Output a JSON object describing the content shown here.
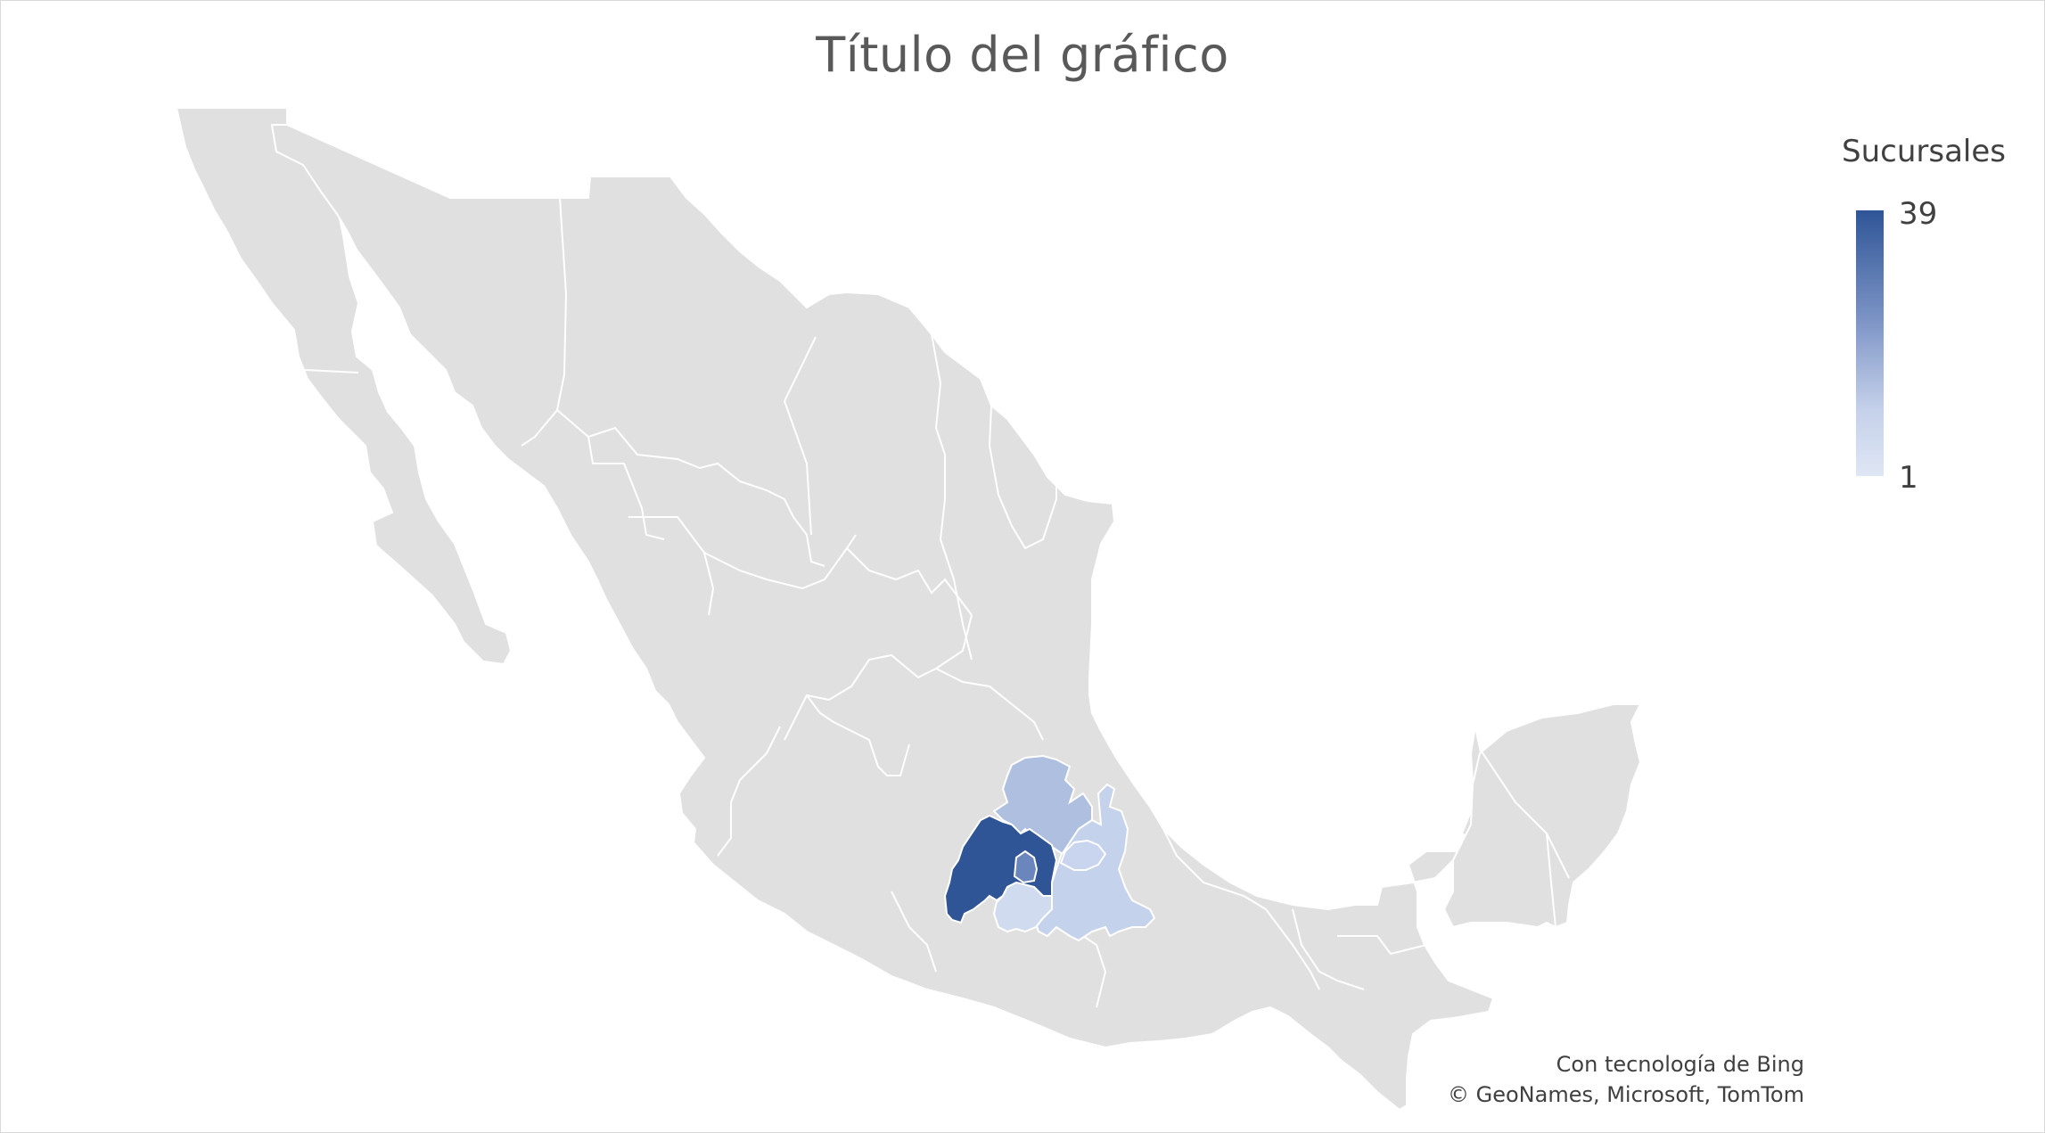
{
  "title": "Título del gráfico",
  "legend": {
    "title": "Sucursales",
    "max": "39",
    "min": "1",
    "color_max": "#2f5597",
    "color_min": "#dfe6f4"
  },
  "map": {
    "region": "Mexico",
    "base_color": "#e0e0e0",
    "border_color": "#ffffff",
    "highlighted_states": [
      {
        "name": "Estado de México",
        "level": "max",
        "color": "#2f5597"
      },
      {
        "name": "Hidalgo",
        "level": "low",
        "color": "#aebfe0"
      },
      {
        "name": "Puebla",
        "level": "low",
        "color": "#c5d2ec"
      },
      {
        "name": "Tlaxcala",
        "level": "low",
        "color": "#c9d5ee"
      },
      {
        "name": "Ciudad de México",
        "level": "mid",
        "color": "#6b85bd"
      },
      {
        "name": "Morelos",
        "level": "low",
        "color": "#d0dbf0"
      }
    ]
  },
  "credits": {
    "line1": "Con tecnología de Bing",
    "line2": "© GeoNames, Microsoft, TomTom"
  }
}
